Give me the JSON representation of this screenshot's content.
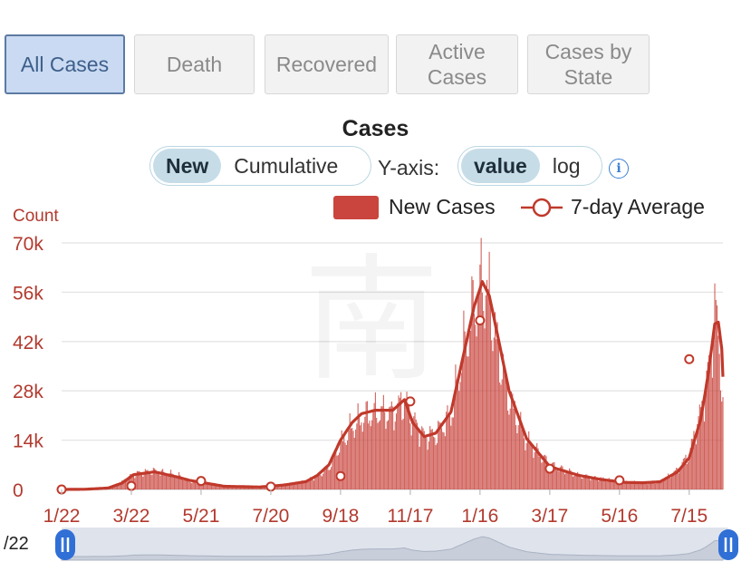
{
  "tabs": [
    {
      "label": "All Cases",
      "active": true
    },
    {
      "label": "Death",
      "active": false
    },
    {
      "label": "Recovered",
      "active": false
    },
    {
      "label": "Active Cases",
      "active": false
    },
    {
      "label": "Cases by State",
      "active": false
    }
  ],
  "mode_toggle": {
    "options": [
      "New",
      "Cumulative"
    ],
    "selected": "New"
  },
  "yaxis_toggle": {
    "label": "Y-axis:",
    "options": [
      "value",
      "log"
    ],
    "selected": "value"
  },
  "info_icon": "info-icon",
  "colors": {
    "bar": "#c9453e",
    "line": "#c0392b",
    "axis_text": "#b23a2e",
    "active_tab_bg": "#c9daf2"
  },
  "chart_data": {
    "type": "bar",
    "title": "Cases",
    "ylabel": "Count",
    "ylim": [
      0,
      70000
    ],
    "yticks": [
      0,
      14000,
      28000,
      42000,
      56000,
      70000
    ],
    "ytick_labels": [
      "0",
      "14k",
      "28k",
      "42k",
      "56k",
      "70k"
    ],
    "xtick_labels": [
      "1/22",
      "3/22",
      "5/21",
      "7/20",
      "9/18",
      "11/17",
      "1/16",
      "3/17",
      "5/16",
      "7/15"
    ],
    "x_unit": "day",
    "grid": true,
    "legend_position": "top-right",
    "series": [
      {
        "name": "New Cases",
        "type": "bar",
        "keypoints": [
          [
            0,
            0
          ],
          [
            20,
            50
          ],
          [
            40,
            400
          ],
          [
            52,
            2200
          ],
          [
            62,
            4500
          ],
          [
            80,
            5200
          ],
          [
            100,
            4000
          ],
          [
            110,
            2300
          ],
          [
            140,
            1000
          ],
          [
            170,
            300
          ],
          [
            190,
            900
          ],
          [
            210,
            2400
          ],
          [
            220,
            3800
          ],
          [
            230,
            6200
          ],
          [
            240,
            13000
          ],
          [
            250,
            17500
          ],
          [
            258,
            20000
          ],
          [
            270,
            22000
          ],
          [
            285,
            21500
          ],
          [
            295,
            25500
          ],
          [
            302,
            20000
          ],
          [
            312,
            15000
          ],
          [
            322,
            15500
          ],
          [
            335,
            21000
          ],
          [
            345,
            38000
          ],
          [
            355,
            52000
          ],
          [
            362,
            58500
          ],
          [
            368,
            54000
          ],
          [
            375,
            40000
          ],
          [
            385,
            26000
          ],
          [
            400,
            14000
          ],
          [
            420,
            7000
          ],
          [
            445,
            4000
          ],
          [
            465,
            3000
          ],
          [
            485,
            2000
          ],
          [
            500,
            1800
          ],
          [
            515,
            2000
          ],
          [
            530,
            5500
          ],
          [
            540,
            10000
          ],
          [
            550,
            22000
          ],
          [
            556,
            32000
          ],
          [
            560,
            43000
          ],
          [
            562,
            50000
          ],
          [
            565,
            45000
          ],
          [
            568,
            30000
          ],
          [
            569,
            22000
          ]
        ]
      },
      {
        "name": "7-day Average",
        "type": "line",
        "keypoints": [
          [
            0,
            0
          ],
          [
            20,
            50
          ],
          [
            40,
            400
          ],
          [
            52,
            1800
          ],
          [
            62,
            4200
          ],
          [
            80,
            5000
          ],
          [
            100,
            3500
          ],
          [
            110,
            2600
          ],
          [
            140,
            900
          ],
          [
            170,
            700
          ],
          [
            190,
            1200
          ],
          [
            210,
            2200
          ],
          [
            220,
            4000
          ],
          [
            230,
            7000
          ],
          [
            240,
            14000
          ],
          [
            250,
            19000
          ],
          [
            258,
            21500
          ],
          [
            270,
            22500
          ],
          [
            285,
            22500
          ],
          [
            295,
            25500
          ],
          [
            302,
            19000
          ],
          [
            312,
            15000
          ],
          [
            322,
            16000
          ],
          [
            335,
            22000
          ],
          [
            345,
            37000
          ],
          [
            355,
            52000
          ],
          [
            362,
            59000
          ],
          [
            368,
            55000
          ],
          [
            375,
            44000
          ],
          [
            385,
            28000
          ],
          [
            400,
            14500
          ],
          [
            420,
            6500
          ],
          [
            445,
            4000
          ],
          [
            465,
            2800
          ],
          [
            485,
            2000
          ],
          [
            500,
            1900
          ],
          [
            515,
            2200
          ],
          [
            530,
            5000
          ],
          [
            540,
            9000
          ],
          [
            550,
            20000
          ],
          [
            556,
            32000
          ],
          [
            560,
            42000
          ],
          [
            562,
            47000
          ],
          [
            565,
            47500
          ],
          [
            568,
            40000
          ],
          [
            569,
            32000
          ]
        ],
        "markers": [
          [
            0,
            0
          ],
          [
            60,
            1000
          ],
          [
            120,
            2400
          ],
          [
            180,
            800
          ],
          [
            240,
            3800
          ],
          [
            300,
            25000
          ],
          [
            360,
            48000
          ],
          [
            420,
            5900
          ],
          [
            480,
            2600
          ],
          [
            540,
            37000
          ]
        ]
      }
    ],
    "range_slider": {
      "start_label": "/22",
      "overview": true
    }
  }
}
